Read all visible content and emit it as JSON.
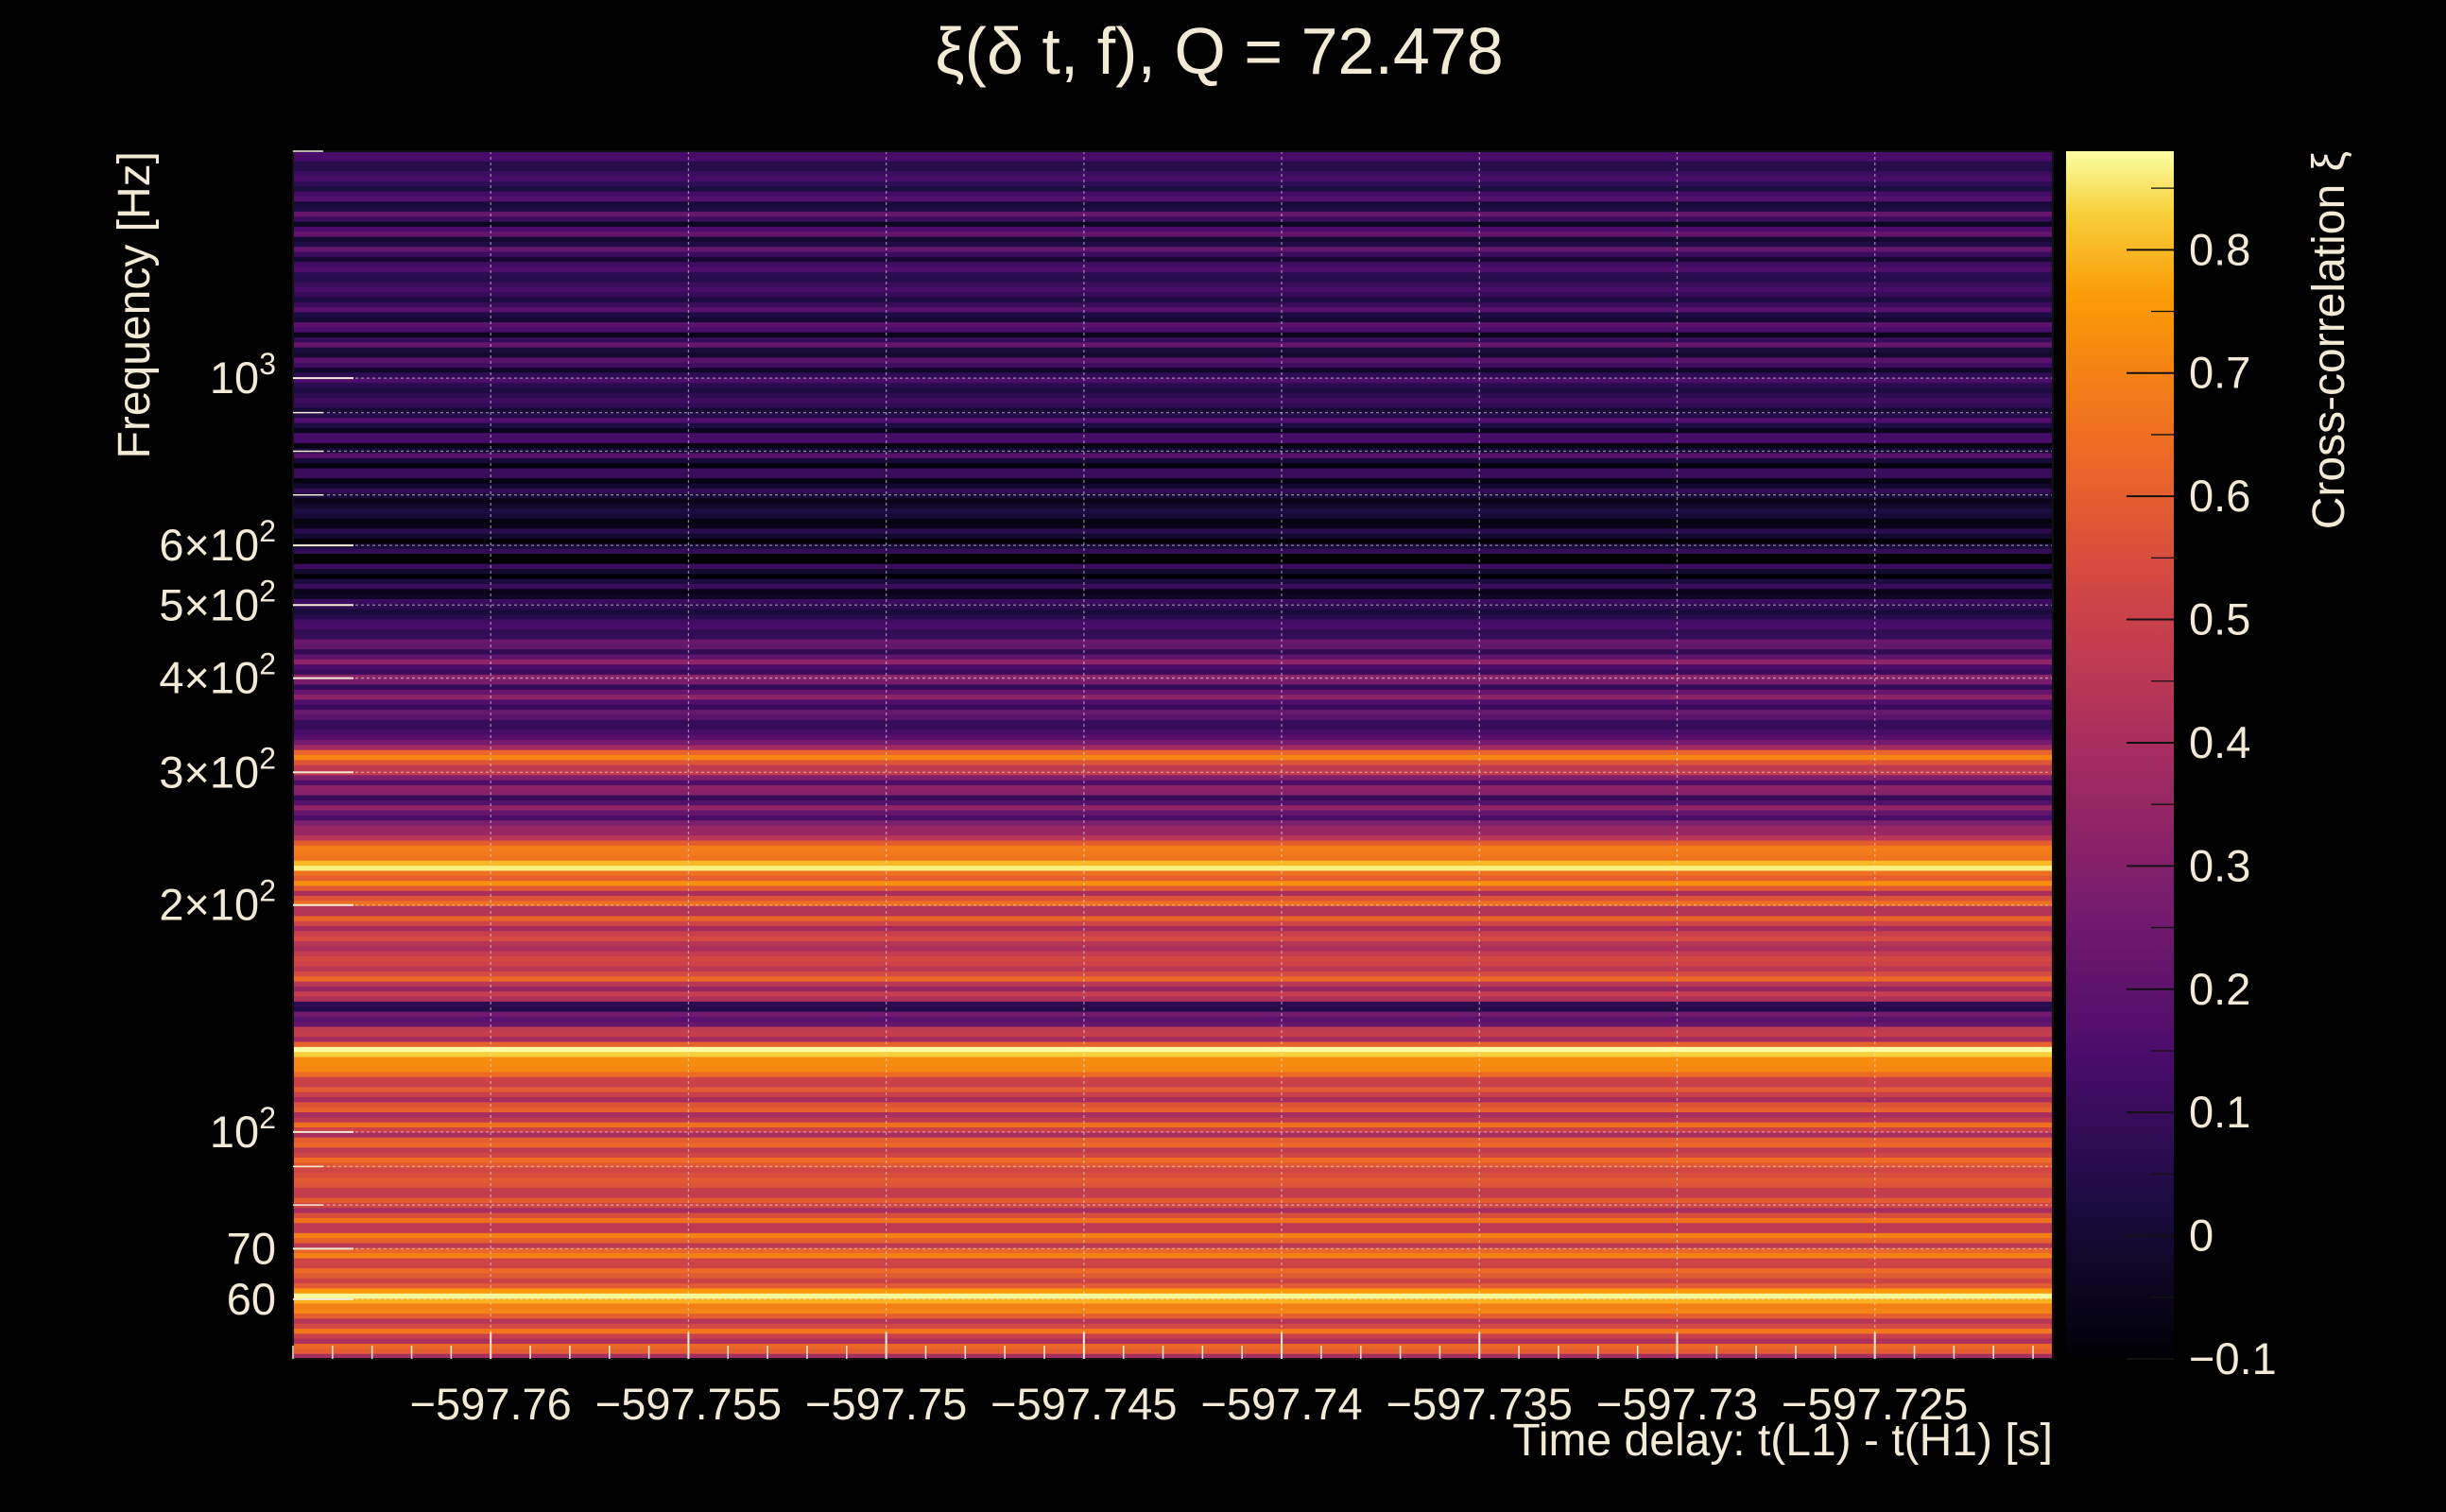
{
  "chart_data": {
    "type": "heatmap",
    "title": "ξ(δ t, f), Q = 72.478",
    "xlabel": "Time delay: t(L1) - t(H1) [s]",
    "ylabel": "Frequency [Hz]",
    "colorbar_label": "Cross-correlation ξ",
    "x_range": [
      -597.765,
      -597.7205
    ],
    "y_range": [
      50,
      2000
    ],
    "y_scale": "log",
    "z_range": [
      -0.1,
      0.88
    ],
    "grid": true,
    "colormap": "inferno",
    "x_ticks": [
      {
        "value": -597.76,
        "label": "−597.76"
      },
      {
        "value": -597.755,
        "label": "−597.755"
      },
      {
        "value": -597.75,
        "label": "−597.75"
      },
      {
        "value": -597.745,
        "label": "−597.745"
      },
      {
        "value": -597.74,
        "label": "−597.74"
      },
      {
        "value": -597.735,
        "label": "−597.735"
      },
      {
        "value": -597.73,
        "label": "−597.73"
      },
      {
        "value": -597.725,
        "label": "−597.725"
      }
    ],
    "y_ticks": [
      {
        "value": 60,
        "label": "60",
        "exp": ""
      },
      {
        "value": 70,
        "label": "70",
        "exp": ""
      },
      {
        "value": 100,
        "label": "10",
        "exp": "2"
      },
      {
        "value": 200,
        "label": "2×10",
        "exp": "2"
      },
      {
        "value": 300,
        "label": "3×10",
        "exp": "2"
      },
      {
        "value": 400,
        "label": "4×10",
        "exp": "2"
      },
      {
        "value": 500,
        "label": "5×10",
        "exp": "2"
      },
      {
        "value": 600,
        "label": "6×10",
        "exp": "2"
      },
      {
        "value": 1000,
        "label": "10",
        "exp": "3"
      }
    ],
    "colorbar_ticks": [
      {
        "value": -0.1,
        "label": "−0.1"
      },
      {
        "value": 0,
        "label": "0"
      },
      {
        "value": 0.1,
        "label": "0.1"
      },
      {
        "value": 0.2,
        "label": "0.2"
      },
      {
        "value": 0.3,
        "label": "0.3"
      },
      {
        "value": 0.4,
        "label": "0.4"
      },
      {
        "value": 0.5,
        "label": "0.5"
      },
      {
        "value": 0.6,
        "label": "0.6"
      },
      {
        "value": 0.7,
        "label": "0.7"
      },
      {
        "value": 0.8,
        "label": "0.8"
      }
    ],
    "band_profile": [
      {
        "f": 50,
        "xi": 0.52
      },
      {
        "f": 57,
        "xi": 0.55
      },
      {
        "f": 59.5,
        "xi": 0.82
      },
      {
        "f": 60.5,
        "xi": 0.85
      },
      {
        "f": 63,
        "xi": 0.55
      },
      {
        "f": 70,
        "xi": 0.6
      },
      {
        "f": 80,
        "xi": 0.5
      },
      {
        "f": 90,
        "xi": 0.58
      },
      {
        "f": 100,
        "xi": 0.52
      },
      {
        "f": 115,
        "xi": 0.5
      },
      {
        "f": 125,
        "xi": 0.78
      },
      {
        "f": 128,
        "xi": 0.88
      },
      {
        "f": 132,
        "xi": 0.5
      },
      {
        "f": 140,
        "xi": 0.3
      },
      {
        "f": 145,
        "xi": 0.02
      },
      {
        "f": 150,
        "xi": 0.35
      },
      {
        "f": 160,
        "xi": 0.55
      },
      {
        "f": 175,
        "xi": 0.45
      },
      {
        "f": 190,
        "xi": 0.5
      },
      {
        "f": 210,
        "xi": 0.55
      },
      {
        "f": 225,
        "xi": 0.8
      },
      {
        "f": 240,
        "xi": 0.62
      },
      {
        "f": 255,
        "xi": 0.25
      },
      {
        "f": 280,
        "xi": 0.2
      },
      {
        "f": 300,
        "xi": 0.35
      },
      {
        "f": 310,
        "xi": 0.7
      },
      {
        "f": 320,
        "xi": 0.55
      },
      {
        "f": 335,
        "xi": 0.1
      },
      {
        "f": 380,
        "xi": 0.22
      },
      {
        "f": 430,
        "xi": 0.2
      },
      {
        "f": 480,
        "xi": 0.08
      },
      {
        "f": 550,
        "xi": -0.03
      },
      {
        "f": 650,
        "xi": -0.02
      },
      {
        "f": 800,
        "xi": 0.05
      },
      {
        "f": 1000,
        "xi": 0.08
      },
      {
        "f": 1500,
        "xi": 0.1
      },
      {
        "f": 2000,
        "xi": 0.09
      }
    ]
  }
}
